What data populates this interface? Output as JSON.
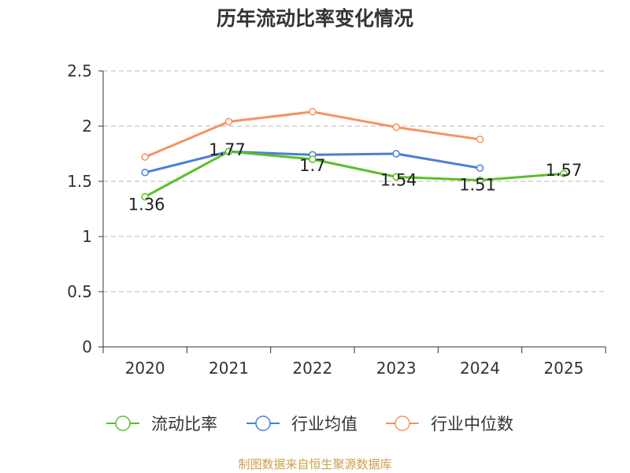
{
  "chart_data": {
    "type": "line",
    "title": "历年流动比率变化情况",
    "categories": [
      "2020",
      "2021",
      "2022",
      "2023",
      "2024",
      "2025"
    ],
    "ylim": [
      0,
      2.5
    ],
    "yticks": [
      0,
      0.5,
      1,
      1.5,
      2,
      2.5
    ],
    "ytick_labels": [
      "0",
      "0.5",
      "1",
      "1.5",
      "2",
      "2.5"
    ],
    "grid": true,
    "legend_position": "bottom",
    "series": [
      {
        "name": "流动比率",
        "color": "#5bbf2a",
        "values": [
          1.36,
          1.77,
          1.7,
          1.54,
          1.51,
          1.57
        ],
        "labels": [
          "1.36",
          "1.77",
          "1.7",
          "1.54",
          "1.51",
          "1.57"
        ]
      },
      {
        "name": "行业均值",
        "color": "#4a7fd8",
        "values": [
          1.58,
          1.77,
          1.74,
          1.75,
          1.62,
          null
        ]
      },
      {
        "name": "行业中位数",
        "color": "#f59361",
        "values": [
          1.72,
          2.04,
          2.13,
          1.99,
          1.88,
          null
        ]
      }
    ]
  },
  "source": "制图数据来自恒生聚源数据库"
}
